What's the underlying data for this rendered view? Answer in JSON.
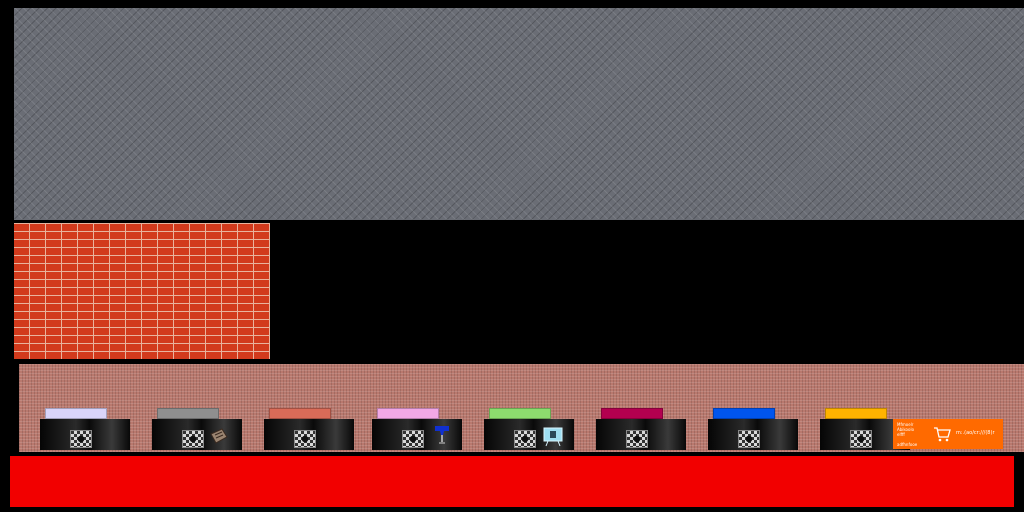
{
  "scene": {
    "top_panel": {
      "texture": "diamond-plate",
      "color": "#6a6d75"
    },
    "brick_panel": {
      "texture": "brick",
      "color": "#d23a1c"
    },
    "shelf": {
      "texture": "speckled",
      "color": "#b9796e"
    },
    "bottom_bar": {
      "color": "#f20000"
    }
  },
  "slots": [
    {
      "tab_color": "#d9d4fa",
      "item_icon": ""
    },
    {
      "tab_color": "#8f8f8f",
      "item_icon": "book-icon"
    },
    {
      "tab_color": "#d96b58",
      "item_icon": ""
    },
    {
      "tab_color": "#f2a8e6",
      "item_icon": "blue-tee-icon"
    },
    {
      "tab_color": "#8ddc6e",
      "item_icon": "monitor-icon"
    },
    {
      "tab_color": "#b3004f",
      "item_icon": ""
    },
    {
      "tab_color": "#0055ee",
      "item_icon": ""
    },
    {
      "tab_color": "#ffb300",
      "item_icon": ""
    }
  ],
  "buy_panel": {
    "color": "#ff6a00",
    "line1": "Mfmoelr",
    "line2": "Abikoolo",
    "line3": "elfff",
    "line4": "adfhnfooe",
    "price": "m:.(ao/cr:///(8)r"
  }
}
